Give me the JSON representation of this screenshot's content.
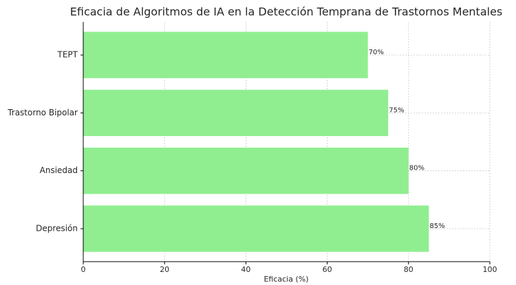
{
  "chart_data": {
    "type": "barh",
    "title": "Eficacia de Algoritmos de IA en la Detección Temprana de Trastornos Mentales",
    "xlabel": "Eficacia (%)",
    "categories": [
      "Depresión",
      "Ansiedad",
      "Trastorno Bipolar",
      "TEPT"
    ],
    "values": [
      85,
      80,
      75,
      70
    ],
    "value_labels": [
      "85%",
      "80%",
      "75%",
      "70%"
    ],
    "color": "#90ee90",
    "xlim": [
      0,
      100
    ],
    "xticks": [
      0,
      20,
      40,
      60,
      80,
      100
    ],
    "grid": true
  }
}
